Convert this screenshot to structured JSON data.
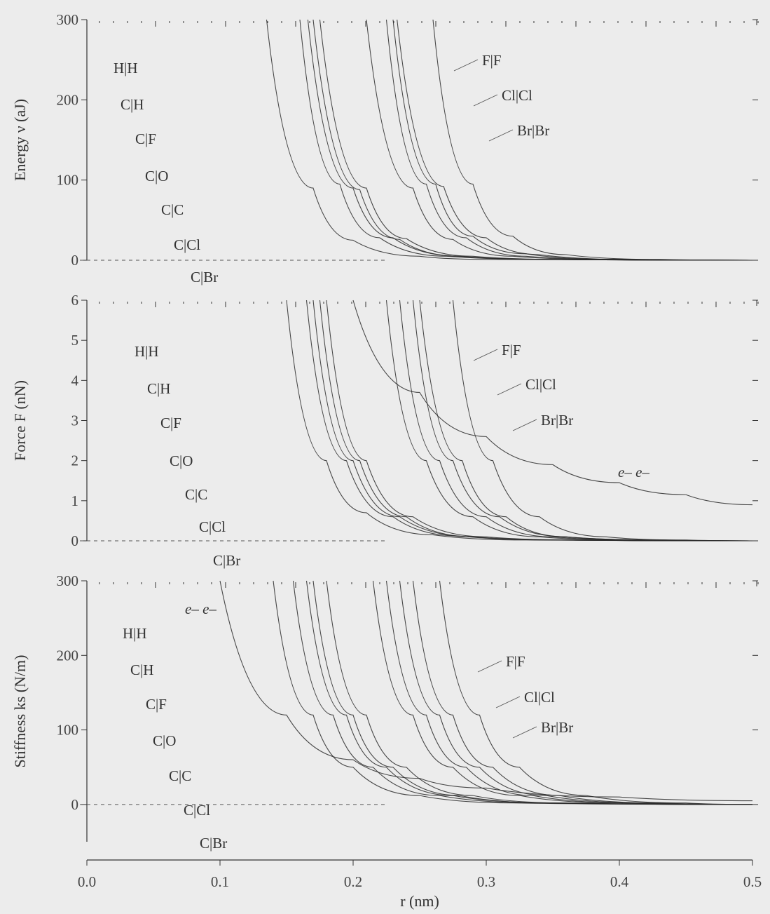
{
  "chart_data": [
    {
      "type": "line",
      "ylabel": "Energy ν (aJ)",
      "ylim": [
        0,
        300
      ],
      "yticks": [
        0,
        100,
        200,
        300
      ],
      "x": [
        0.0,
        0.1,
        0.2,
        0.3,
        0.4,
        0.5
      ],
      "labels_left": [
        "H|H",
        "C|H",
        "C|F",
        "C|O",
        "C|C",
        "C|Cl",
        "C|Br"
      ],
      "labels_right": [
        "F|F",
        "Cl|Cl",
        "Br|Br"
      ],
      "series": [
        {
          "name": "H|H",
          "values": [
            [
              0.135,
              300
            ],
            [
              0.17,
              90
            ],
            [
              0.2,
              25
            ],
            [
              0.25,
              5
            ],
            [
              0.3,
              1
            ],
            [
              0.5,
              0
            ]
          ]
        },
        {
          "name": "C|H",
          "values": [
            [
              0.16,
              300
            ],
            [
              0.19,
              95
            ],
            [
              0.22,
              28
            ],
            [
              0.27,
              5
            ],
            [
              0.35,
              1
            ],
            [
              0.5,
              0
            ]
          ]
        },
        {
          "name": "C|F",
          "values": [
            [
              0.166,
              300
            ],
            [
              0.2,
              90
            ],
            [
              0.23,
              28
            ],
            [
              0.28,
              5
            ],
            [
              0.35,
              1
            ],
            [
              0.5,
              0
            ]
          ]
        },
        {
          "name": "C|O",
          "values": [
            [
              0.17,
              300
            ],
            [
              0.205,
              88
            ],
            [
              0.235,
              26
            ],
            [
              0.28,
              5
            ],
            [
              0.35,
              1
            ],
            [
              0.5,
              0
            ]
          ]
        },
        {
          "name": "C|C",
          "values": [
            [
              0.175,
              300
            ],
            [
              0.21,
              90
            ],
            [
              0.24,
              27
            ],
            [
              0.29,
              5
            ],
            [
              0.36,
              1
            ],
            [
              0.5,
              0
            ]
          ]
        },
        {
          "name": "C|Cl",
          "values": [
            [
              0.21,
              300
            ],
            [
              0.245,
              90
            ],
            [
              0.275,
              26
            ],
            [
              0.32,
              5
            ],
            [
              0.39,
              1
            ],
            [
              0.5,
              0
            ]
          ]
        },
        {
          "name": "C|Br",
          "values": [
            [
              0.225,
              300
            ],
            [
              0.255,
              95
            ],
            [
              0.285,
              28
            ],
            [
              0.33,
              5
            ],
            [
              0.4,
              1
            ],
            [
              0.5,
              0
            ]
          ]
        },
        {
          "name": "F|F",
          "values": [
            [
              0.23,
              300
            ],
            [
              0.262,
              95
            ],
            [
              0.29,
              30
            ],
            [
              0.33,
              8
            ],
            [
              0.4,
              1
            ],
            [
              0.5,
              0
            ]
          ]
        },
        {
          "name": "Cl|Cl",
          "values": [
            [
              0.233,
              300
            ],
            [
              0.268,
              92
            ],
            [
              0.3,
              28
            ],
            [
              0.34,
              7
            ],
            [
              0.41,
              1
            ],
            [
              0.5,
              0
            ]
          ]
        },
        {
          "name": "Br|Br",
          "values": [
            [
              0.26,
              300
            ],
            [
              0.29,
              95
            ],
            [
              0.32,
              30
            ],
            [
              0.36,
              7
            ],
            [
              0.43,
              1
            ],
            [
              0.5,
              0
            ]
          ]
        }
      ]
    },
    {
      "type": "line",
      "ylabel": "Force F (nN)",
      "ylim": [
        0,
        6
      ],
      "yticks": [
        0,
        1,
        2,
        3,
        4,
        5,
        6
      ],
      "x": [
        0.0,
        0.1,
        0.2,
        0.3,
        0.4,
        0.5
      ],
      "labels_left": [
        "H|H",
        "C|H",
        "C|F",
        "C|O",
        "C|C",
        "C|Cl",
        "C|Br"
      ],
      "labels_right": [
        "F|F",
        "Cl|Cl",
        "Br|Br",
        "e– e–"
      ],
      "series": [
        {
          "name": "H|H",
          "values": [
            [
              0.15,
              6
            ],
            [
              0.18,
              2
            ],
            [
              0.21,
              0.7
            ],
            [
              0.26,
              0.15
            ],
            [
              0.33,
              0.02
            ],
            [
              0.5,
              0
            ]
          ]
        },
        {
          "name": "C|H",
          "values": [
            [
              0.165,
              6
            ],
            [
              0.195,
              2
            ],
            [
              0.23,
              0.6
            ],
            [
              0.28,
              0.12
            ],
            [
              0.35,
              0.02
            ],
            [
              0.5,
              0
            ]
          ]
        },
        {
          "name": "C|F",
          "values": [
            [
              0.17,
              6
            ],
            [
              0.2,
              2
            ],
            [
              0.235,
              0.6
            ],
            [
              0.29,
              0.1
            ],
            [
              0.36,
              0.02
            ],
            [
              0.5,
              0
            ]
          ]
        },
        {
          "name": "C|O",
          "values": [
            [
              0.175,
              6
            ],
            [
              0.205,
              2
            ],
            [
              0.24,
              0.6
            ],
            [
              0.29,
              0.1
            ],
            [
              0.36,
              0.02
            ],
            [
              0.5,
              0
            ]
          ]
        },
        {
          "name": "C|C",
          "values": [
            [
              0.18,
              6
            ],
            [
              0.21,
              2
            ],
            [
              0.245,
              0.6
            ],
            [
              0.3,
              0.1
            ],
            [
              0.37,
              0.02
            ],
            [
              0.5,
              0
            ]
          ]
        },
        {
          "name": "C|Cl",
          "values": [
            [
              0.225,
              6
            ],
            [
              0.255,
              2
            ],
            [
              0.29,
              0.6
            ],
            [
              0.34,
              0.1
            ],
            [
              0.41,
              0.02
            ],
            [
              0.5,
              0
            ]
          ]
        },
        {
          "name": "C|Br",
          "values": [
            [
              0.235,
              6
            ],
            [
              0.265,
              2
            ],
            [
              0.3,
              0.6
            ],
            [
              0.35,
              0.1
            ],
            [
              0.42,
              0.02
            ],
            [
              0.5,
              0
            ]
          ]
        },
        {
          "name": "F|F",
          "values": [
            [
              0.245,
              6
            ],
            [
              0.275,
              2
            ],
            [
              0.31,
              0.6
            ],
            [
              0.36,
              0.1
            ],
            [
              0.43,
              0.02
            ],
            [
              0.5,
              0
            ]
          ]
        },
        {
          "name": "Cl|Cl",
          "values": [
            [
              0.25,
              6
            ],
            [
              0.282,
              2
            ],
            [
              0.315,
              0.6
            ],
            [
              0.36,
              0.1
            ],
            [
              0.43,
              0.02
            ],
            [
              0.5,
              0
            ]
          ]
        },
        {
          "name": "Br|Br",
          "values": [
            [
              0.275,
              6
            ],
            [
              0.305,
              2
            ],
            [
              0.34,
              0.6
            ],
            [
              0.39,
              0.1
            ],
            [
              0.45,
              0.02
            ],
            [
              0.5,
              0
            ]
          ]
        },
        {
          "name": "e– e–",
          "values": [
            [
              0.2,
              6
            ],
            [
              0.25,
              3.7
            ],
            [
              0.3,
              2.6
            ],
            [
              0.35,
              1.9
            ],
            [
              0.4,
              1.45
            ],
            [
              0.45,
              1.15
            ],
            [
              0.5,
              0.9
            ]
          ]
        }
      ]
    },
    {
      "type": "line",
      "ylabel": "Stiffness ks (N/m)",
      "ylim": [
        -50,
        300
      ],
      "yticks": [
        0,
        100,
        200,
        300
      ],
      "x": [
        0.0,
        0.1,
        0.2,
        0.3,
        0.4,
        0.5
      ],
      "xlabel": "r (nm)",
      "xticks": [
        "0.0",
        "0.1",
        "0.2",
        "0.3",
        "0.4",
        "0.5"
      ],
      "labels_left": [
        "e– e–",
        "H|H",
        "C|H",
        "C|F",
        "C|O",
        "C|C",
        "C|Cl",
        "C|Br"
      ],
      "labels_right": [
        "F|F",
        "Cl|Cl",
        "Br|Br"
      ],
      "series": [
        {
          "name": "e– e–",
          "values": [
            [
              0.1,
              300
            ],
            [
              0.15,
              120
            ],
            [
              0.2,
              60
            ],
            [
              0.25,
              35
            ],
            [
              0.3,
              22
            ],
            [
              0.4,
              10
            ],
            [
              0.5,
              5
            ]
          ]
        },
        {
          "name": "H|H",
          "values": [
            [
              0.14,
              300
            ],
            [
              0.17,
              120
            ],
            [
              0.2,
              50
            ],
            [
              0.25,
              12
            ],
            [
              0.32,
              2
            ],
            [
              0.5,
              0
            ]
          ]
        },
        {
          "name": "C|H",
          "values": [
            [
              0.155,
              300
            ],
            [
              0.185,
              120
            ],
            [
              0.215,
              50
            ],
            [
              0.265,
              12
            ],
            [
              0.34,
              2
            ],
            [
              0.5,
              0
            ]
          ]
        },
        {
          "name": "C|F",
          "values": [
            [
              0.165,
              300
            ],
            [
              0.195,
              120
            ],
            [
              0.225,
              50
            ],
            [
              0.275,
              12
            ],
            [
              0.35,
              2
            ],
            [
              0.5,
              0
            ]
          ]
        },
        {
          "name": "C|O",
          "values": [
            [
              0.17,
              300
            ],
            [
              0.2,
              120
            ],
            [
              0.23,
              50
            ],
            [
              0.28,
              12
            ],
            [
              0.35,
              2
            ],
            [
              0.5,
              0
            ]
          ]
        },
        {
          "name": "C|C",
          "values": [
            [
              0.18,
              300
            ],
            [
              0.21,
              120
            ],
            [
              0.24,
              50
            ],
            [
              0.29,
              12
            ],
            [
              0.36,
              2
            ],
            [
              0.5,
              0
            ]
          ]
        },
        {
          "name": "C|Cl",
          "values": [
            [
              0.215,
              300
            ],
            [
              0.245,
              120
            ],
            [
              0.275,
              50
            ],
            [
              0.325,
              12
            ],
            [
              0.4,
              2
            ],
            [
              0.5,
              0
            ]
          ]
        },
        {
          "name": "C|Br",
          "values": [
            [
              0.225,
              300
            ],
            [
              0.255,
              120
            ],
            [
              0.285,
              50
            ],
            [
              0.335,
              12
            ],
            [
              0.41,
              2
            ],
            [
              0.5,
              0
            ]
          ]
        },
        {
          "name": "F|F",
          "values": [
            [
              0.235,
              300
            ],
            [
              0.265,
              120
            ],
            [
              0.295,
              50
            ],
            [
              0.345,
              12
            ],
            [
              0.42,
              2
            ],
            [
              0.5,
              0
            ]
          ]
        },
        {
          "name": "Cl|Cl",
          "values": [
            [
              0.245,
              300
            ],
            [
              0.275,
              120
            ],
            [
              0.305,
              50
            ],
            [
              0.355,
              12
            ],
            [
              0.43,
              2
            ],
            [
              0.5,
              0
            ]
          ]
        },
        {
          "name": "Br|Br",
          "values": [
            [
              0.265,
              300
            ],
            [
              0.295,
              120
            ],
            [
              0.325,
              50
            ],
            [
              0.375,
              12
            ],
            [
              0.45,
              2
            ],
            [
              0.5,
              0
            ]
          ]
        }
      ]
    }
  ]
}
